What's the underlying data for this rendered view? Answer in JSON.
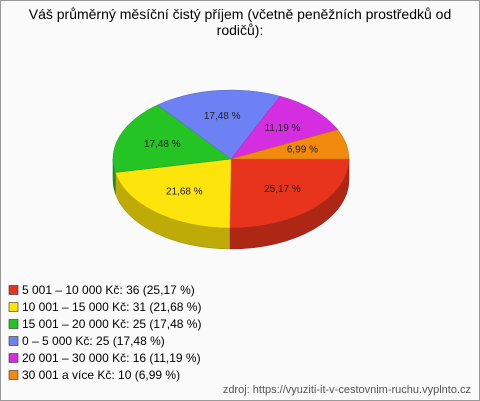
{
  "chart_data": {
    "type": "pie",
    "title": "Váš průměrný měsíční čistý příjem (včetně peněžních prostředků od rodičů):",
    "categories": [
      "5 001 – 10 000 Kč",
      "10 001 – 15 000 Kč",
      "15 001 – 20 000 Kč",
      "0 – 5 000 Kč",
      "20 001 – 30 000 Kč",
      "30 001 a více Kč"
    ],
    "values": [
      25.17,
      21.68,
      17.48,
      17.48,
      11.19,
      6.99
    ],
    "value_labels": [
      "25,17 %",
      "21,68 %",
      "17,48 %",
      "17,48 %",
      "11,19 %",
      "6,99 %"
    ],
    "legend_labels": [
      "5 001 – 10 000 Kč: 36 (25,17 %)",
      "10 001 – 15 000 Kč: 31 (21,68 %)",
      "15 001 – 20 000 Kč: 25 (17,48 %)",
      "0 – 5 000 Kč: 25 (17,48 %)",
      "20 001 – 30 000 Kč: 16 (11,19 %)",
      "30 001 a více Kč: 10 (6,99 %)"
    ],
    "colors": [
      "#e8341c",
      "#fde40a",
      "#25c425",
      "#6d80f4",
      "#d52ee0",
      "#f28a0e"
    ],
    "source": "zdroj: https://vyuziti-it-v-cestovnim-ruchu.vyplnto.cz"
  }
}
